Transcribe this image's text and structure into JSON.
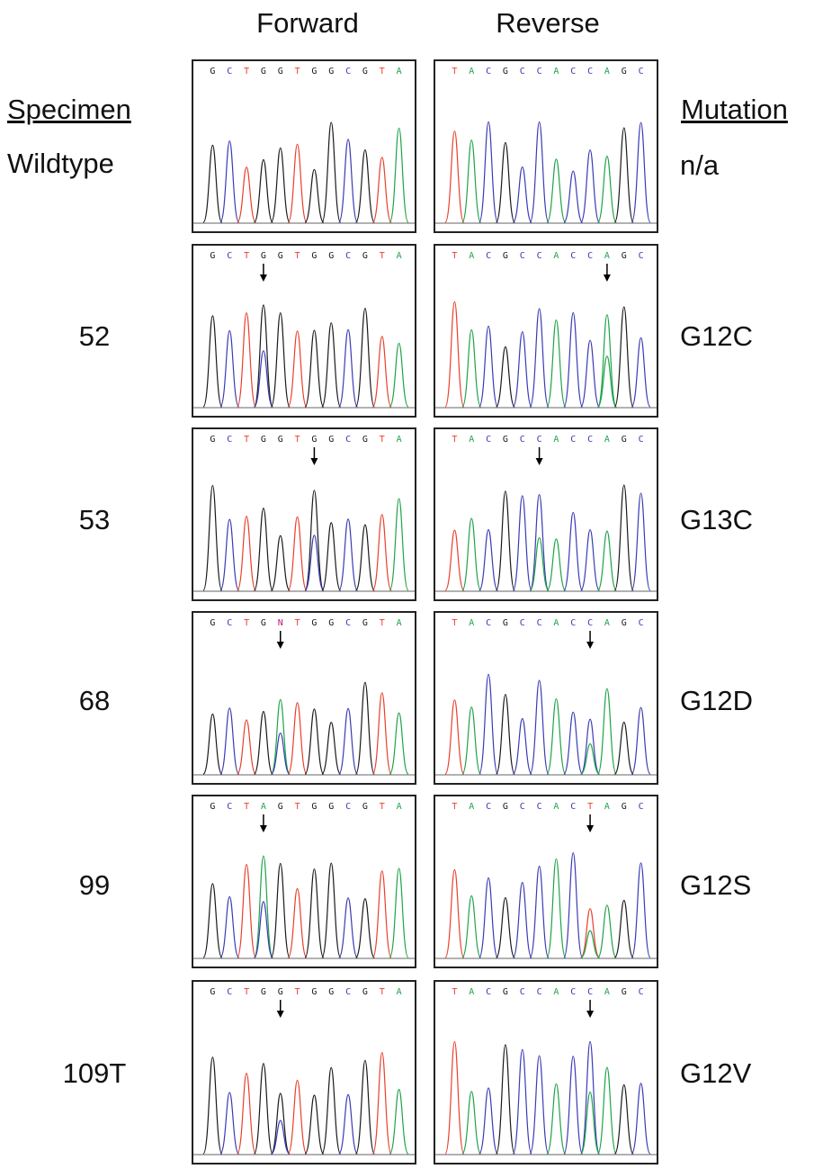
{
  "headers": {
    "forward": "Forward",
    "reverse": "Reverse",
    "specimen": "Specimen",
    "mutation": "Mutation"
  },
  "colors": {
    "G": "#1a1a1a",
    "C": "#e8412c",
    "T": "#e8412c",
    "A": "#1fa34a",
    "N": "#c71585",
    "trace_T": "#e8412c",
    "trace_C": "#3b3bb5",
    "label_T": "#e8412c",
    "label_C": "#3b3bb5"
  },
  "rows": [
    {
      "specimen": "Wildtype",
      "mutation": "n/a",
      "forward_bases": "GCTGGTGGCGTA",
      "reverse_bases": "TACGCCACCAGC",
      "forward_arrow": null,
      "reverse_arrow": null
    },
    {
      "specimen": "52",
      "mutation": "G12C",
      "forward_bases": "GCTGGTGGCGTA",
      "reverse_bases": "TACGCCACCAGC",
      "forward_arrow": 3,
      "reverse_arrow": 9
    },
    {
      "specimen": "53",
      "mutation": "G13C",
      "forward_bases": "GCTGGTGGCGTA",
      "reverse_bases": "TACGCCACCAGC",
      "forward_arrow": 6,
      "reverse_arrow": 5
    },
    {
      "specimen": "68",
      "mutation": "G12D",
      "forward_bases": "GCTGNTGGCGTA",
      "reverse_bases": "TACGCCACCAGC",
      "forward_arrow": 4,
      "reverse_arrow": 8
    },
    {
      "specimen": "99",
      "mutation": "G12S",
      "forward_bases": "GCTAGTGGCGTA",
      "reverse_bases": "TACGCCACTAGC",
      "forward_arrow": 3,
      "reverse_arrow": 8
    },
    {
      "specimen": "109T",
      "mutation": "G12V",
      "forward_bases": "GCTGGTGGCGTA",
      "reverse_bases": "TACGCCACCAGC",
      "forward_arrow": 4,
      "reverse_arrow": 8
    }
  ]
}
